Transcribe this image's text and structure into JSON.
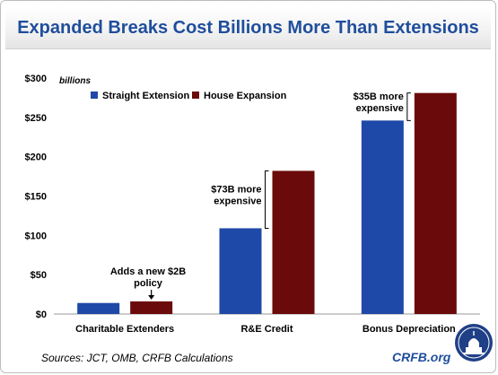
{
  "title": "Expanded Breaks Cost Billions More Than Extensions",
  "source": "Sources: JCT, OMB, CRFB Calculations",
  "brand": "CRFB.org",
  "colors": {
    "title": "#1f4e9c",
    "straight": "#1f49a8",
    "house": "#6b0a0a"
  },
  "chart_data": {
    "type": "bar",
    "title": "Expanded Breaks Cost Billions More Than Extensions",
    "unit_label": "billions",
    "categories": [
      "Charitable Extenders",
      "R&E Credit",
      "Bonus Depreciation"
    ],
    "series": [
      {
        "name": "Straight Extension",
        "values": [
          14,
          109,
          246
        ]
      },
      {
        "name": "House Expansion",
        "values": [
          16,
          182,
          281
        ]
      }
    ],
    "ylim": [
      0,
      300
    ],
    "yticks": [
      0,
      50,
      100,
      150,
      200,
      250,
      300
    ],
    "ytick_labels": [
      "$0",
      "$50",
      "$100",
      "$150",
      "$200",
      "$250",
      "$300"
    ],
    "legend_position": "top-left",
    "grid": false,
    "annotations": [
      {
        "text_lines": [
          "Adds a new $2B",
          "policy"
        ],
        "category": "Charitable Extenders"
      },
      {
        "text_lines": [
          "$73B more",
          "expensive"
        ],
        "category": "R&E Credit"
      },
      {
        "text_lines": [
          "$35B more",
          "expensive"
        ],
        "category": "Bonus Depreciation"
      }
    ]
  }
}
